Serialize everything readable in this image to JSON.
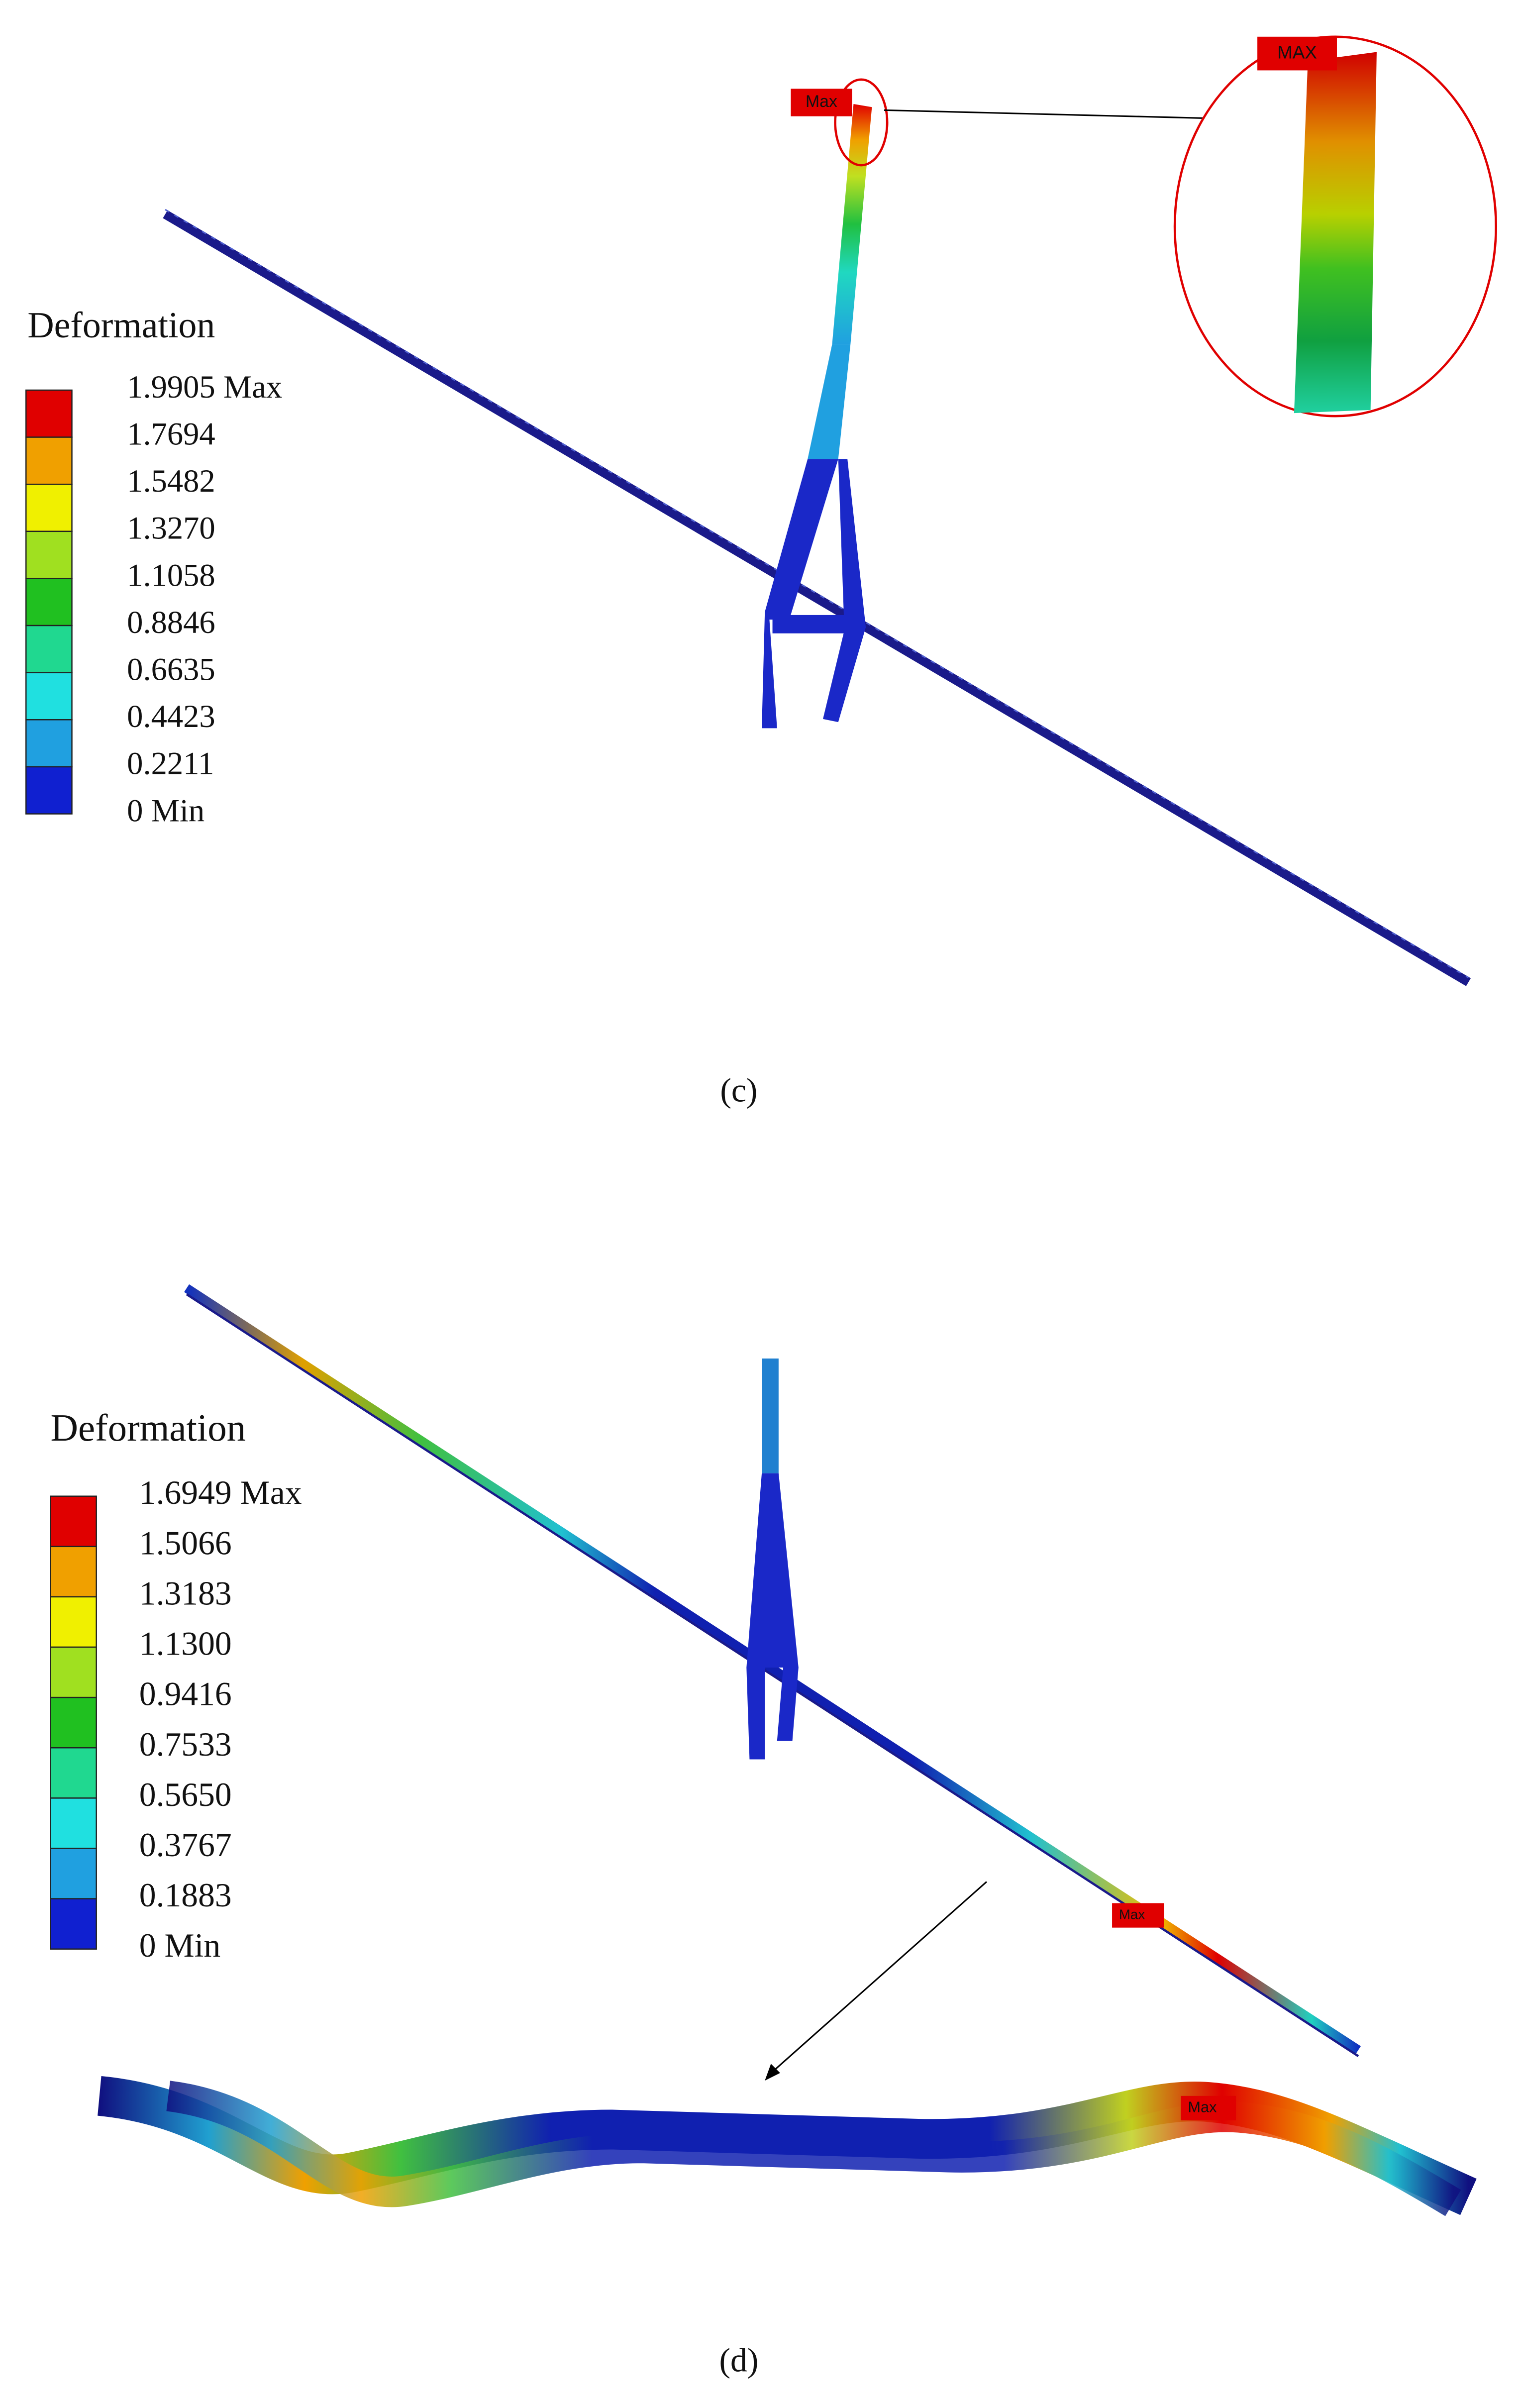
{
  "panel_c": {
    "legend": {
      "title": "Deformation",
      "labels": [
        "1.9905 Max",
        "1.7694",
        "1.5482",
        "1.3270",
        "1.1058",
        "0.8846",
        "0.6635",
        "0.4423",
        "0.2211",
        "0 Min"
      ]
    },
    "marker": "Max",
    "zoom_marker": "MAX",
    "caption": "(c)"
  },
  "panel_d": {
    "legend": {
      "title": "Deformation",
      "labels": [
        "1.6949 Max",
        "1.5066",
        "1.3183",
        "1.1300",
        "0.9416",
        "0.7533",
        "0.5650",
        "0.3767",
        "0.1883",
        "0 Min"
      ]
    },
    "marker": "Max",
    "zoom_marker": "Max",
    "caption": "(d)"
  }
}
